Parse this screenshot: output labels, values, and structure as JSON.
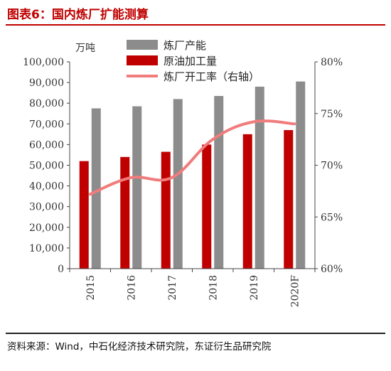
{
  "figure": {
    "title": "图表6：国内炼厂扩能测算",
    "source": "资料来源：Wind，中石化经济技术研究院，东证衍生品研究院"
  },
  "chart_data": {
    "type": "bar",
    "categories": [
      "2015",
      "2016",
      "2017",
      "2018",
      "2019",
      "2020F"
    ],
    "series": [
      {
        "name": "炼厂产能",
        "type": "bar",
        "axis": "left",
        "color": "#8c8c8c",
        "values": [
          77500,
          78500,
          82000,
          83500,
          88000,
          90500
        ]
      },
      {
        "name": "原油加工量",
        "type": "bar",
        "axis": "left",
        "color": "#c00000",
        "values": [
          52000,
          54000,
          56500,
          60000,
          65000,
          67000
        ]
      },
      {
        "name": "炼厂开工率（右轴）",
        "type": "line",
        "axis": "right",
        "color": "#f07c7c",
        "values": [
          67.2,
          68.8,
          68.8,
          72.5,
          74.2,
          74.0
        ]
      }
    ],
    "left_axis": {
      "unit": "万吨",
      "min": 0,
      "max": 100000,
      "step": 10000,
      "tick_labels": [
        "0",
        "10,000",
        "20,000",
        "30,000",
        "40,000",
        "50,000",
        "60,000",
        "70,000",
        "80,000",
        "90,000",
        "100,000"
      ]
    },
    "right_axis": {
      "min": 60,
      "max": 80,
      "step": 5,
      "tick_labels": [
        "60%",
        "65%",
        "70%",
        "75%",
        "80%"
      ]
    },
    "grid": false,
    "legend_position": "top-center"
  }
}
